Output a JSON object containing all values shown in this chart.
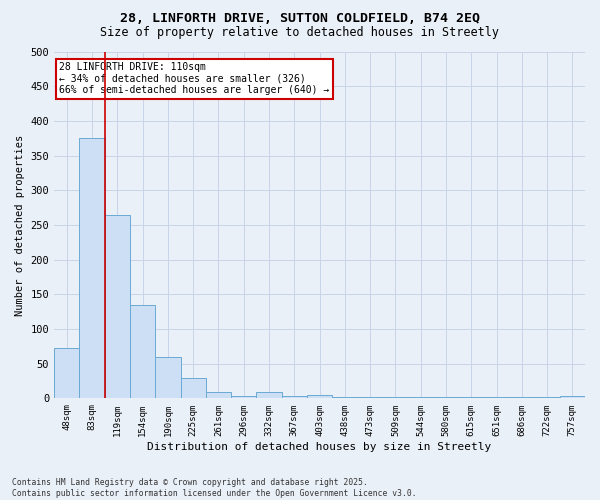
{
  "title_line1": "28, LINFORTH DRIVE, SUTTON COLDFIELD, B74 2EQ",
  "title_line2": "Size of property relative to detached houses in Streetly",
  "xlabel": "Distribution of detached houses by size in Streetly",
  "ylabel": "Number of detached properties",
  "categories": [
    "48sqm",
    "83sqm",
    "119sqm",
    "154sqm",
    "190sqm",
    "225sqm",
    "261sqm",
    "296sqm",
    "332sqm",
    "367sqm",
    "403sqm",
    "438sqm",
    "473sqm",
    "509sqm",
    "544sqm",
    "580sqm",
    "615sqm",
    "651sqm",
    "686sqm",
    "722sqm",
    "757sqm"
  ],
  "values": [
    72,
    376,
    265,
    135,
    60,
    29,
    10,
    3,
    10,
    3,
    5,
    2,
    2,
    2,
    2,
    2,
    2,
    2,
    2,
    2,
    3
  ],
  "bar_color": "#ccdff5",
  "bar_edge_color": "#6aaad4",
  "grid_color": "#c8d4e8",
  "annotation_text_line1": "28 LINFORTH DRIVE: 110sqm",
  "annotation_text_line2": "← 34% of detached houses are smaller (326)",
  "annotation_text_line3": "66% of semi-detached houses are larger (640) →",
  "annotation_box_color": "#ffffff",
  "annotation_box_edge": "#cc0000",
  "red_line_color": "#cc0000",
  "ylim": [
    0,
    500
  ],
  "yticks": [
    0,
    50,
    100,
    150,
    200,
    250,
    300,
    350,
    400,
    450,
    500
  ],
  "footer_line1": "Contains HM Land Registry data © Crown copyright and database right 2025.",
  "footer_line2": "Contains public sector information licensed under the Open Government Licence v3.0.",
  "bg_color": "#eaf0f8"
}
